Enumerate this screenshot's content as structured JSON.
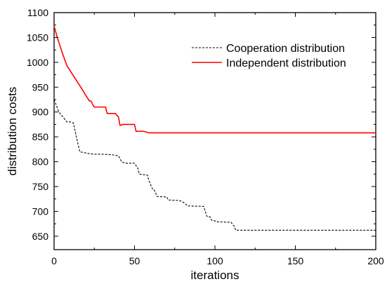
{
  "chart_data": {
    "type": "line",
    "title": "",
    "xlabel": "iterations",
    "ylabel": "distribution costs",
    "xlim": [
      0,
      200
    ],
    "ylim": [
      623,
      1100
    ],
    "x_ticks": [
      0,
      50,
      100,
      150,
      200
    ],
    "x_tick_labels": [
      "0",
      "50",
      "100",
      "150",
      "200"
    ],
    "y_ticks": [
      650,
      700,
      750,
      800,
      850,
      900,
      950,
      1000,
      1050,
      1100
    ],
    "y_tick_labels": [
      "650",
      "700",
      "750",
      "800",
      "850",
      "900",
      "950",
      "1000",
      "1050",
      "1100"
    ],
    "grid": false,
    "legend_position": "top-right",
    "series": [
      {
        "name": "Cooperation distribution",
        "color": "#000000",
        "style": "dashed",
        "points": [
          [
            0,
            925
          ],
          [
            3,
            900
          ],
          [
            6,
            888
          ],
          [
            8,
            880
          ],
          [
            10,
            880
          ],
          [
            12,
            878
          ],
          [
            14,
            848
          ],
          [
            16,
            820
          ],
          [
            19,
            818
          ],
          [
            22,
            816
          ],
          [
            25,
            815
          ],
          [
            30,
            815
          ],
          [
            36,
            814
          ],
          [
            40,
            812
          ],
          [
            42,
            800
          ],
          [
            44,
            797
          ],
          [
            50,
            797
          ],
          [
            52,
            787
          ],
          [
            53,
            775
          ],
          [
            58,
            773
          ],
          [
            59,
            762
          ],
          [
            61,
            746
          ],
          [
            62,
            745
          ],
          [
            63,
            738
          ],
          [
            64,
            730
          ],
          [
            70,
            729
          ],
          [
            71,
            723
          ],
          [
            78,
            722
          ],
          [
            81,
            717
          ],
          [
            83,
            711
          ],
          [
            93,
            710
          ],
          [
            94,
            700
          ],
          [
            95,
            690
          ],
          [
            97,
            689
          ],
          [
            98,
            682
          ],
          [
            100,
            681
          ],
          [
            101,
            679
          ],
          [
            110,
            678
          ],
          [
            112,
            670
          ],
          [
            113,
            662
          ],
          [
            200,
            662
          ]
        ]
      },
      {
        "name": "Independent distribution",
        "color": "#ff0000",
        "style": "solid",
        "points": [
          [
            0,
            1073
          ],
          [
            2,
            1050
          ],
          [
            5,
            1020
          ],
          [
            8,
            993
          ],
          [
            11,
            978
          ],
          [
            14,
            963
          ],
          [
            17,
            948
          ],
          [
            20,
            932
          ],
          [
            22,
            922
          ],
          [
            23,
            922
          ],
          [
            24,
            915
          ],
          [
            25,
            910
          ],
          [
            29,
            910
          ],
          [
            32,
            910
          ],
          [
            33,
            897
          ],
          [
            38,
            897
          ],
          [
            40,
            890
          ],
          [
            41,
            873
          ],
          [
            43,
            875
          ],
          [
            46,
            875
          ],
          [
            50,
            875
          ],
          [
            51,
            861
          ],
          [
            56,
            861
          ],
          [
            59,
            858
          ],
          [
            200,
            858
          ]
        ]
      }
    ]
  }
}
